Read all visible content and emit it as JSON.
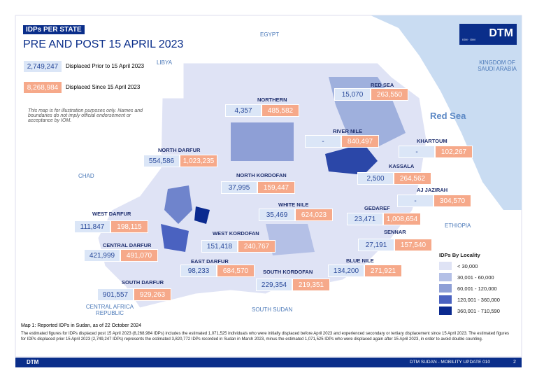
{
  "header": {
    "tag": "IDPs PER STATE",
    "title": "PRE AND POST 15 APRIL 2023"
  },
  "key": [
    {
      "value": "2,749,247",
      "label": "Displaced Prior to 15 April 2023"
    },
    {
      "value": "8,268,984",
      "label": "Displaced Since 15 April 2023"
    }
  ],
  "disclaimer": "This map is for illustration purposes only. Names and boundaries do not imply official endorsement or acceptance by IOM.",
  "logo": {
    "text": "DTM",
    "sub": "IOM · OIM"
  },
  "countries": [
    "LIBYA",
    "EGYPT",
    "KINGDOM OF SAUDI ARABIA",
    "Red Sea",
    "CHAD",
    "ETHIOPIA",
    "CENTRAL AFRICA REPUBLIC",
    "SOUTH SUDAN"
  ],
  "states": [
    {
      "name": "RED SEA",
      "prior": "15,070",
      "since": "263,550"
    },
    {
      "name": "NORTHERN",
      "prior": "4,357",
      "since": "485,582"
    },
    {
      "name": "RIVER NILE",
      "prior": "-",
      "since": "840,497"
    },
    {
      "name": "KHARTOUM",
      "prior": "-",
      "since": "102,267"
    },
    {
      "name": "NORTH DARFUR",
      "prior": "554,586",
      "since": "1,023,235"
    },
    {
      "name": "KASSALA",
      "prior": "2,500",
      "since": "264,562"
    },
    {
      "name": "NORTH KORDOFAN",
      "prior": "37,995",
      "since": "159,447"
    },
    {
      "name": "AJ JAZIRAH",
      "prior": "-",
      "since": "304,570"
    },
    {
      "name": "WHITE NILE",
      "prior": "35,469",
      "since": "624,023"
    },
    {
      "name": "GEDAREF",
      "prior": "23,471",
      "since": "1,008,654"
    },
    {
      "name": "WEST DARFUR",
      "prior": "111,847",
      "since": "198,115"
    },
    {
      "name": "WEST KORDOFAN",
      "prior": "151,418",
      "since": "240,767"
    },
    {
      "name": "SENNAR",
      "prior": "27,191",
      "since": "157,540"
    },
    {
      "name": "CENTRAL DARFUR",
      "prior": "421,999",
      "since": "491,070"
    },
    {
      "name": "EAST DARFUR",
      "prior": "98,233",
      "since": "684,570"
    },
    {
      "name": "BLUE NILE",
      "prior": "134,200",
      "since": "271,921"
    },
    {
      "name": "SOUTH KORDOFAN",
      "prior": "229,354",
      "since": "219,351"
    },
    {
      "name": "SOUTH DARFUR",
      "prior": "901,557",
      "since": "929,263"
    }
  ],
  "legend": {
    "title": "IDPs By Locality",
    "items": [
      "< 30,000",
      "30,001 - 60,000",
      "60,001 - 120,000",
      "120,001 - 360,000",
      "360,001 - 710,590"
    ]
  },
  "caption": "Map 1: Reported IDPs in Sudan, as of 22 October 2024",
  "note": "The estimated figures for IDPs displaced post 15 April 2023 (8,268,984 IDPs) includes the estimated 1,071,525 individuals who were initially displaced before April 2023 and experienced secondary or tertiary displacement since 15 April 2023. The estimated figures for IDPs displaced prior 15 April 2023 (2,749,247 IDPs) represents the estimated 3,820,772 IDPs recorded in Sudan in March 2023, minus the estimated 1,071,525 IDPs who were displaced again after 15 April 2023, in order to avoid double counting.",
  "footer": {
    "logo": "DTM",
    "text": "DTM SUDAN - MOBILITY UPDATE 010",
    "page": "2"
  }
}
